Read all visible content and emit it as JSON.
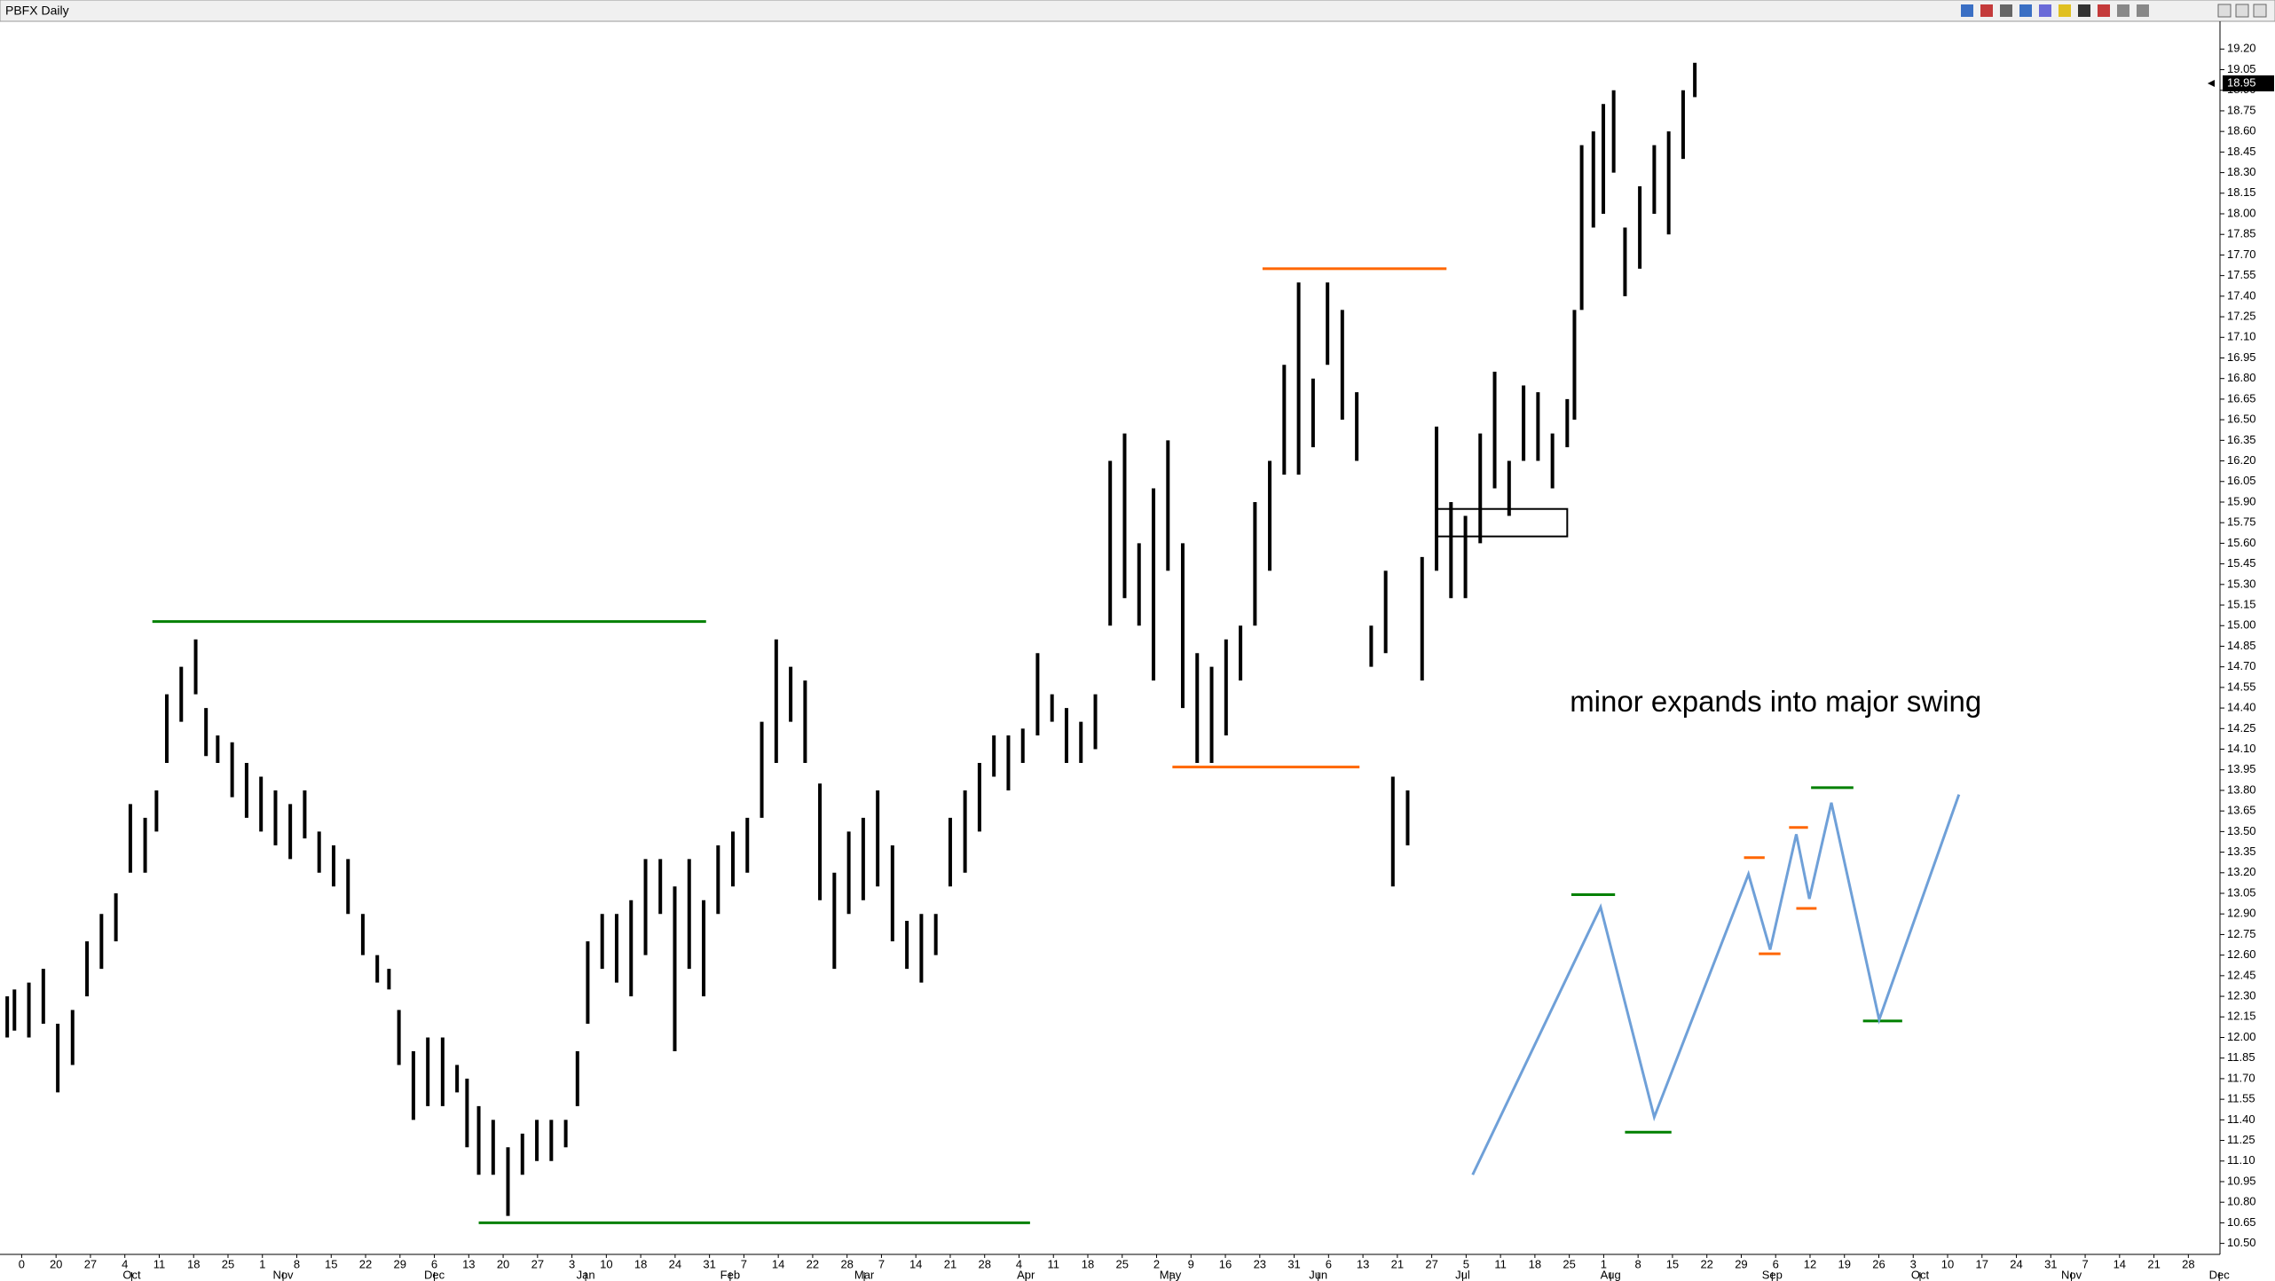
{
  "chart_data": {
    "type": "ohlc",
    "title": "PBFX Daily",
    "ylim": [
      10.42,
      19.37
    ],
    "xlim": [
      -0.63,
      63.92
    ],
    "yticks": [
      {
        "value": 10.5,
        "label": "10.50"
      },
      10.65,
      {
        "value": 10.8,
        "label": "10.80"
      },
      10.95,
      {
        "value": 11.1,
        "label": "11.10"
      },
      11.25,
      {
        "value": 11.4,
        "label": "11.40"
      },
      11.55,
      {
        "value": 11.7,
        "label": "11.70"
      },
      11.85,
      {
        "value": 12,
        "label": "12.00"
      },
      12.15,
      {
        "value": 12.3,
        "label": "12.30"
      },
      12.45,
      {
        "value": 12.6,
        "label": "12.60"
      },
      12.75,
      {
        "value": 12.9,
        "label": "12.90"
      },
      13.05,
      {
        "value": 13.2,
        "label": "13.20"
      },
      13.35,
      {
        "value": 13.5,
        "label": "13.50"
      },
      13.65,
      {
        "value": 13.8,
        "label": "13.80"
      },
      13.95,
      {
        "value": 14.1,
        "label": "14.10"
      },
      14.25,
      {
        "value": 14.4,
        "label": "14.40"
      },
      14.55,
      {
        "value": 14.7,
        "label": "14.70"
      },
      14.85,
      {
        "value": 15,
        "label": "15.00"
      },
      15.15,
      {
        "value": 15.3,
        "label": "15.30"
      },
      15.45,
      {
        "value": 15.6,
        "label": "15.60"
      },
      15.75,
      {
        "value": 15.9,
        "label": "15.90"
      },
      16.05,
      {
        "value": 16.2,
        "label": "16.20"
      },
      16.35,
      {
        "value": 16.5,
        "label": "16.50"
      },
      16.65,
      {
        "value": 16.8,
        "label": "16.80"
      },
      16.95,
      {
        "value": 17.1,
        "label": "17.10"
      },
      17.25,
      {
        "value": 17.4,
        "label": "17.40"
      },
      17.55,
      {
        "value": 17.7,
        "label": "17.70"
      },
      17.85,
      {
        "value": 18,
        "label": "18.00"
      },
      18.15,
      {
        "value": 18.3,
        "label": "18.30"
      },
      18.45,
      {
        "value": 18.6,
        "label": "18.60"
      },
      18.75,
      {
        "value": 18.9,
        "label": "18.90"
      },
      19.05,
      {
        "value": 19.2,
        "label": "19.20"
      }
    ],
    "xticks": [
      0,
      {
        "value": 1,
        "label": "20"
      },
      {
        "value": 2,
        "label": "27"
      },
      {
        "value": 3,
        "label": "4"
      },
      {
        "value": 4,
        "label": "11"
      },
      {
        "value": 5,
        "label": "18"
      },
      {
        "value": 6,
        "label": "25"
      },
      {
        "value": 7,
        "label": "1"
      },
      {
        "value": 8,
        "label": "8"
      },
      {
        "value": 9,
        "label": "15"
      },
      {
        "value": 10,
        "label": "22"
      },
      {
        "value": 11,
        "label": "29"
      },
      {
        "value": 12,
        "label": "6"
      },
      {
        "value": 13,
        "label": "13"
      },
      {
        "value": 14,
        "label": "20"
      },
      {
        "value": 15,
        "label": "27"
      },
      {
        "value": 16,
        "label": "3"
      },
      {
        "value": 17,
        "label": "10"
      },
      18,
      {
        "value": 19,
        "label": "24"
      },
      {
        "value": 20,
        "label": "31"
      },
      {
        "value": 21,
        "label": "7"
      },
      {
        "value": 22,
        "label": "14"
      },
      {
        "value": 23,
        "label": "22"
      },
      {
        "value": 24,
        "label": "28"
      },
      {
        "value": 25,
        "label": "7"
      },
      {
        "value": 26,
        "label": "14"
      },
      {
        "value": 27,
        "label": "21"
      },
      28,
      {
        "value": 29,
        "label": "4"
      },
      {
        "value": 30,
        "label": "11"
      },
      {
        "value": 31,
        "label": "18"
      },
      {
        "value": 32,
        "label": "25"
      },
      {
        "value": 33,
        "label": "2"
      },
      {
        "value": 34,
        "label": "9"
      },
      {
        "value": 35,
        "label": "16"
      },
      {
        "value": 36,
        "label": "23"
      },
      {
        "value": 37,
        "label": "31"
      },
      {
        "value": 38,
        "label": "6"
      },
      {
        "value": 39,
        "label": "13"
      },
      {
        "value": 40,
        "label": "21"
      },
      {
        "value": 41,
        "label": "27"
      },
      {
        "value": 42,
        "label": "5"
      },
      {
        "value": 43,
        "label": "11"
      },
      {
        "value": 44,
        "label": "18"
      },
      {
        "value": 45,
        "label": "25"
      },
      {
        "value": 46,
        "label": "1"
      },
      {
        "value": 47,
        "label": "8"
      },
      {
        "value": 48,
        "label": "15"
      },
      {
        "value": 49,
        "label": "22"
      },
      {
        "value": 50,
        "label": "29"
      },
      {
        "value": 51,
        "label": "6"
      },
      {
        "value": 52,
        "label": "12"
      },
      {
        "value": 53,
        "label": "19"
      },
      {
        "value": 54,
        "label": "26"
      },
      {
        "value": 55,
        "label": "3"
      },
      {
        "value": 56,
        "label": "10"
      },
      {
        "value": 57,
        "label": "17"
      },
      {
        "value": 58,
        "label": "24"
      },
      {
        "value": 59,
        "label": "31"
      },
      {
        "value": 60,
        "label": "7"
      },
      {
        "value": 61,
        "label": "14"
      },
      {
        "value": 62,
        "label": "21"
      },
      {
        "value": 63,
        "label": "28"
      }
    ],
    "month_ticks": [
      {
        "value": 3.2,
        "label": "Oct"
      },
      {
        "value": 7.6,
        "label": "Nov"
      },
      {
        "value": 12,
        "label": "Dec"
      },
      {
        "value": 16.4,
        "label": "Jan"
      },
      {
        "value": 20.6,
        "label": "Feb"
      },
      {
        "value": 24.5,
        "label": "Mar"
      },
      {
        "value": 29.2,
        "label": "Apr"
      },
      {
        "value": 33.4,
        "label": "May"
      },
      {
        "value": 37.7,
        "label": "Jun"
      },
      {
        "value": 41.9,
        "label": "Jul"
      },
      {
        "value": 46.2,
        "label": "Aug"
      },
      {
        "value": 50.9,
        "label": "Sep"
      },
      {
        "value": 55.2,
        "label": "Oct"
      },
      {
        "value": 59.6,
        "label": "Nov"
      },
      {
        "value": 63.9,
        "label": "Dec"
      }
    ],
    "bars": {
      "color": "#000000",
      "x": [
        -0.42,
        -0.21,
        0.21,
        0.63,
        1.05,
        1.48,
        1.9,
        2.32,
        2.74,
        3.16,
        3.59,
        3.92,
        4.22,
        4.64,
        5.06,
        5.36,
        5.7,
        6.12,
        6.54,
        6.96,
        7.38,
        7.81,
        8.23,
        8.65,
        9.07,
        9.49,
        9.92,
        10.34,
        10.68,
        10.97,
        11.39,
        11.81,
        12.24,
        12.66,
        12.95,
        13.29,
        13.71,
        14.14,
        14.56,
        14.98,
        15.4,
        15.82,
        16.16,
        16.46,
        16.88,
        17.3,
        17.72,
        18.14,
        18.57,
        18.99,
        19.41,
        19.83,
        20.25,
        20.68,
        21.1,
        21.52,
        21.94,
        22.36,
        22.78,
        23.21,
        23.63,
        24.05,
        24.47,
        24.89,
        25.32,
        25.74,
        26.16,
        26.58,
        27,
        27.43,
        27.85,
        28.27,
        28.69,
        29.11,
        29.54,
        29.96,
        30.38,
        30.8,
        31.22,
        31.65,
        32.07,
        32.49,
        32.91,
        33.33,
        33.76,
        34.18,
        34.6,
        35.02,
        35.44,
        35.86,
        36.29,
        36.71,
        37.13,
        37.55,
        37.97,
        38.4,
        38.82,
        39.24,
        39.66,
        39.87,
        40.3,
        40.72,
        41.14,
        41.56,
        41.98,
        42.41,
        42.83,
        43.25,
        43.67,
        44.09,
        44.51,
        44.94,
        45.15,
        45.36,
        45.7,
        45.99,
        46.29,
        46.62,
        47.05,
        47.47,
        47.89,
        48.31,
        48.65
      ],
      "high": [
        12.3,
        12.35,
        12.4,
        12.5,
        12.1,
        12.2,
        12.7,
        12.9,
        13.05,
        13.7,
        13.6,
        13.8,
        14.5,
        14.7,
        14.9,
        14.4,
        14.2,
        14.15,
        14,
        13.9,
        13.8,
        13.7,
        13.8,
        13.5,
        13.4,
        13.3,
        12.9,
        12.6,
        12.5,
        12.2,
        11.9,
        12,
        12,
        11.8,
        11.7,
        11.5,
        11.4,
        11.2,
        11.3,
        11.4,
        11.4,
        11.4,
        11.9,
        12.7,
        12.9,
        12.9,
        13,
        13.3,
        13.3,
        13.1,
        13.3,
        13,
        13.4,
        13.5,
        13.6,
        14.3,
        14.9,
        14.7,
        14.6,
        13.85,
        13.2,
        13.5,
        13.6,
        13.8,
        13.4,
        12.85,
        12.9,
        12.9,
        13.6,
        13.8,
        14,
        14.2,
        14.2,
        14.25,
        14.8,
        14.5,
        14.4,
        14.3,
        14.5,
        16.2,
        16.4,
        15.6,
        16,
        16.35,
        15.6,
        14.8,
        14.7,
        14.9,
        15,
        15.9,
        16.2,
        16.9,
        17.5,
        16.8,
        17.5,
        17.3,
        16.7,
        15,
        15.4,
        13.9,
        13.8,
        15.5,
        16.45,
        15.9,
        15.8,
        16.4,
        16.85,
        16.2,
        16.75,
        16.7,
        16.4,
        16.65,
        17.3,
        18.5,
        18.6,
        18.8,
        18.9,
        17.9,
        18.2,
        18.5,
        18.6,
        18.9,
        19.1
      ],
      "low": [
        12,
        12.05,
        12,
        12.1,
        11.6,
        11.8,
        12.3,
        12.5,
        12.7,
        13.2,
        13.2,
        13.5,
        14,
        14.3,
        14.5,
        14.05,
        14,
        13.75,
        13.6,
        13.5,
        13.4,
        13.3,
        13.45,
        13.2,
        13.1,
        12.9,
        12.6,
        12.4,
        12.35,
        11.8,
        11.4,
        11.5,
        11.5,
        11.6,
        11.2,
        11,
        11,
        10.7,
        11,
        11.1,
        11.1,
        11.2,
        11.5,
        12.1,
        12.5,
        12.4,
        12.3,
        12.6,
        12.9,
        11.9,
        12.5,
        12.3,
        12.9,
        13.1,
        13.2,
        13.6,
        14,
        14.3,
        14,
        13,
        12.5,
        12.9,
        13,
        13.1,
        12.7,
        12.5,
        12.4,
        12.6,
        13.1,
        13.2,
        13.5,
        13.9,
        13.8,
        14,
        14.2,
        14.3,
        14,
        14,
        14.1,
        15,
        15.2,
        15,
        14.6,
        15.4,
        14.4,
        14,
        14,
        14.2,
        14.6,
        15,
        15.4,
        16.1,
        16.1,
        16.3,
        16.9,
        16.5,
        16.2,
        14.7,
        14.8,
        13.1,
        13.4,
        14.6,
        15.4,
        15.2,
        15.2,
        15.6,
        16,
        15.8,
        16.2,
        16.2,
        16,
        16.3,
        16.5,
        17.3,
        17.9,
        18,
        18.3,
        17.4,
        17.6,
        18,
        17.85,
        18.4,
        18.85
      ]
    },
    "last_price": 18.95,
    "level_lines": [
      {
        "color": "#008000",
        "y": 15.03,
        "x": [
          3.8,
          19.9
        ]
      },
      {
        "color": "#008000",
        "y": 10.65,
        "x": [
          13.29,
          29.32
        ]
      },
      {
        "color": "#ff6600",
        "y": 17.6,
        "x": [
          36.08,
          41.43
        ]
      },
      {
        "color": "#ff6600",
        "y": 13.97,
        "x": [
          33.46,
          38.9
        ]
      },
      {
        "color": "#008000",
        "y": 13.04,
        "x": [
          45.06,
          46.33
        ]
      },
      {
        "color": "#008000",
        "y": 11.31,
        "x": [
          46.62,
          47.97
        ]
      },
      {
        "color": "#ff6600",
        "y": 13.31,
        "x": [
          50.08,
          50.68
        ]
      },
      {
        "color": "#ff6600",
        "y": 12.61,
        "x": [
          50.51,
          51.14
        ]
      },
      {
        "color": "#ff6600",
        "y": 13.53,
        "x": [
          51.39,
          51.94
        ]
      },
      {
        "color": "#ff6600",
        "y": 12.94,
        "x": [
          51.6,
          52.19
        ]
      },
      {
        "color": "#008000",
        "y": 13.82,
        "x": [
          52.03,
          53.26
        ]
      },
      {
        "color": "#008000",
        "y": 12.12,
        "x": [
          53.54,
          54.68
        ]
      }
    ],
    "box": {
      "x": [
        41.14,
        44.94
      ],
      "y": [
        15.65,
        15.85
      ]
    },
    "swing_path": {
      "color": "#6fa0d8",
      "x": [
        42.19,
        45.91,
        47.47,
        50.21,
        50.84,
        51.6,
        51.98,
        52.62,
        54.01,
        56.33
      ],
      "y": [
        11,
        12.95,
        11.42,
        13.19,
        12.64,
        13.48,
        13.01,
        13.71,
        12.13,
        13.77
      ]
    },
    "annotation": {
      "text": "minor expands into major swing",
      "x": 51,
      "y": 14.43
    }
  }
}
